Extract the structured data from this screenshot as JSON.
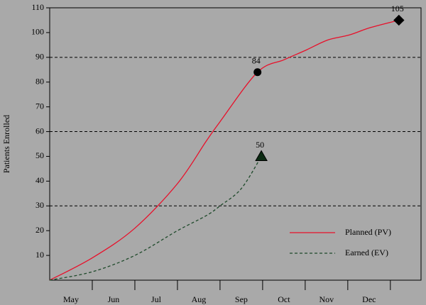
{
  "chart_data": {
    "type": "line",
    "y_label": "Patients Enrolled",
    "categories": [
      "May",
      "Jun",
      "Jul",
      "Aug",
      "Sep",
      "Oct",
      "Nov",
      "Dec"
    ],
    "xlim": [
      0,
      8.72
    ],
    "xticks": [
      1,
      2,
      3,
      4,
      5,
      6,
      7,
      8
    ],
    "ylim": [
      0,
      110
    ],
    "yticks": [
      10,
      20,
      30,
      40,
      50,
      60,
      70,
      80,
      90,
      100,
      110
    ],
    "reference_lines": [
      30,
      60,
      90
    ],
    "legend": "lower-right",
    "series": [
      {
        "name": "Planned (PV)",
        "color": "#e8102a",
        "dash": false,
        "x": [
          0,
          1,
          2,
          3,
          3.67,
          4,
          4.88,
          5.5,
          6.03,
          6.53,
          7.03,
          7.53,
          8.2
        ],
        "values": [
          0,
          9,
          21,
          39,
          56,
          64,
          84,
          89,
          93,
          97,
          99,
          102,
          105
        ],
        "marker_shapes": [
          null,
          null,
          null,
          null,
          null,
          null,
          "circle",
          null,
          null,
          null,
          null,
          null,
          "diamond"
        ]
      },
      {
        "name": "Earned (EV)",
        "color": "#1f4a2b",
        "dash": true,
        "x": [
          0,
          1,
          2,
          3,
          3.67,
          4,
          4.5,
          4.97
        ],
        "values": [
          0,
          3.4,
          10,
          20,
          26,
          30,
          37,
          50
        ],
        "marker_shapes": [
          null,
          null,
          null,
          null,
          null,
          null,
          null,
          "triangle"
        ]
      }
    ]
  }
}
